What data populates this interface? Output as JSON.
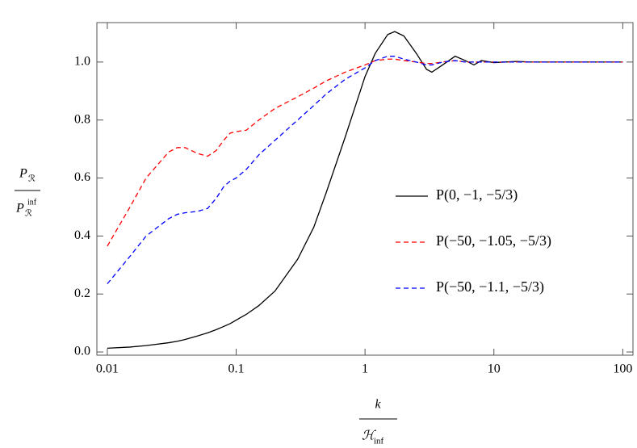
{
  "chart_data": {
    "type": "line",
    "x_label": {
      "numerator": "k",
      "denominator": "ℋ",
      "denominator_sub": "inf"
    },
    "y_label": {
      "numerator": "P",
      "numerator_sub": "ℛ",
      "denominator": "P",
      "denominator_sub": "ℛ",
      "denominator_sup": "inf"
    },
    "x": [
      0.01,
      0.015,
      0.02,
      0.03,
      0.035,
      0.04,
      0.05,
      0.06,
      0.07,
      0.08,
      0.09,
      0.1,
      0.12,
      0.15,
      0.2,
      0.3,
      0.4,
      0.5,
      0.7,
      1,
      1.2,
      1.5,
      1.7,
      2,
      2.5,
      3,
      3.3,
      4,
      5,
      6,
      7,
      8,
      10,
      15,
      20,
      30,
      50,
      100
    ],
    "series": [
      {
        "name": "P(0, −1, −5/3)",
        "color": "#000000",
        "style": "solid",
        "values": [
          0.013,
          0.017,
          0.022,
          0.032,
          0.037,
          0.043,
          0.055,
          0.066,
          0.077,
          0.088,
          0.098,
          0.11,
          0.13,
          0.16,
          0.21,
          0.32,
          0.43,
          0.55,
          0.74,
          0.95,
          1.03,
          1.095,
          1.105,
          1.09,
          1.03,
          0.975,
          0.965,
          0.99,
          1.02,
          1.005,
          0.99,
          1.005,
          0.998,
          1.002,
          1,
          1,
          1,
          1
        ]
      },
      {
        "name": "P(−50, −1.05, −5/3)",
        "color": "#ff0000",
        "style": "dashed",
        "values": [
          0.365,
          0.5,
          0.6,
          0.69,
          0.705,
          0.705,
          0.685,
          0.675,
          0.695,
          0.73,
          0.755,
          0.76,
          0.765,
          0.8,
          0.84,
          0.88,
          0.91,
          0.935,
          0.965,
          0.99,
          1.005,
          1.01,
          1.01,
          1.005,
          1.0,
          0.995,
          0.995,
          1.0,
          1.005,
          1.0,
          1.0,
          1.0,
          1.0,
          1,
          1,
          1,
          1,
          1
        ]
      },
      {
        "name": "P(−50, −1.1, −5/3)",
        "color": "#0000ff",
        "style": "dashed",
        "values": [
          0.235,
          0.33,
          0.4,
          0.46,
          0.475,
          0.48,
          0.485,
          0.495,
          0.53,
          0.57,
          0.59,
          0.6,
          0.63,
          0.68,
          0.73,
          0.8,
          0.85,
          0.89,
          0.94,
          0.98,
          1.005,
          1.02,
          1.02,
          1.01,
          1.0,
          0.99,
          0.99,
          1.0,
          1.005,
          1.0,
          1.0,
          1.0,
          1.0,
          1,
          1,
          1,
          1,
          1
        ]
      }
    ],
    "xscale": "log",
    "xlim": [
      0.0083,
      120
    ],
    "xticks": [
      0.01,
      0.1,
      1,
      10,
      100
    ],
    "ylim": [
      -0.011,
      1.136
    ],
    "yticks": [
      {
        "value": 0,
        "label": "0.0"
      },
      {
        "value": 0.2,
        "label": "0.2"
      },
      {
        "value": 0.4,
        "label": "0.4"
      },
      {
        "value": 0.6,
        "label": "0.6"
      },
      {
        "value": 0.8,
        "label": "0.8"
      },
      {
        "value": 1,
        "label": "1.0"
      }
    ],
    "legend": "right"
  }
}
